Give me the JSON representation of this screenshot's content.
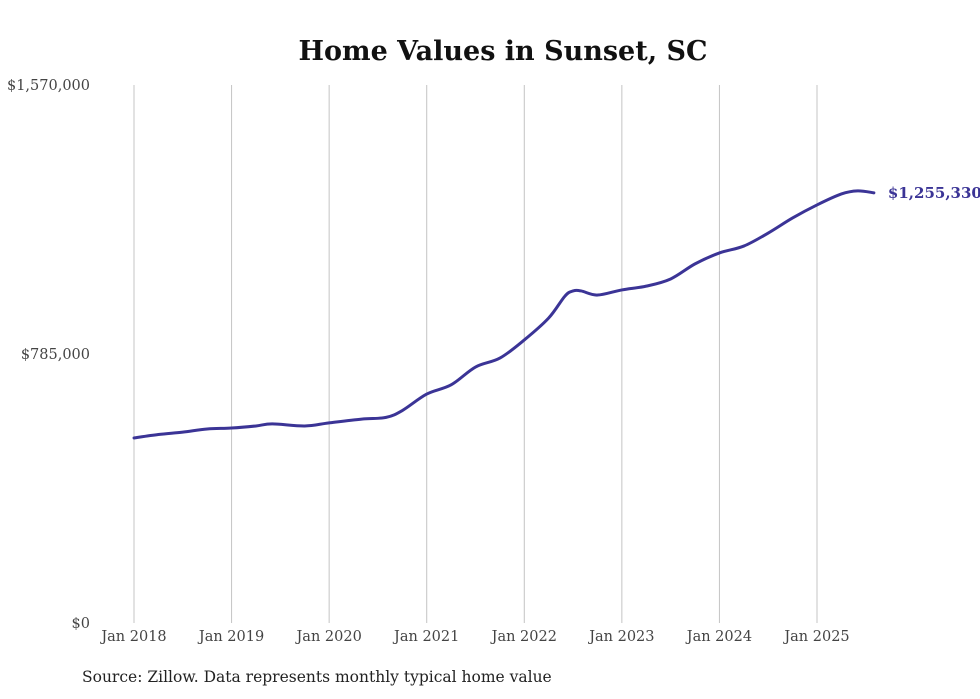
{
  "chart_data": {
    "type": "line",
    "title": "Home Values in Sunset, SC",
    "xlabel": "",
    "ylabel": "",
    "ylim": [
      0,
      1570000
    ],
    "y_ticks": [
      "$0",
      "$785,000",
      "$1,570,000"
    ],
    "y_tick_values": [
      0,
      785000,
      1570000
    ],
    "x_ticks": [
      "Jan 2018",
      "Jan 2019",
      "Jan 2020",
      "Jan 2021",
      "Jan 2022",
      "Jan 2023",
      "Jan 2024",
      "Jan 2025"
    ],
    "x_tick_values": [
      2018,
      2019,
      2020,
      2021,
      2022,
      2023,
      2024,
      2025
    ],
    "grid": "vertical",
    "line_color": "#3b3496",
    "series": [
      {
        "name": "Typical home value",
        "x": [
          "2018-01",
          "2018-04",
          "2018-07",
          "2018-10",
          "2019-01",
          "2019-04",
          "2019-06",
          "2019-10",
          "2020-01",
          "2020-05",
          "2020-08",
          "2020-10",
          "2021-01",
          "2021-04",
          "2021-07",
          "2021-10",
          "2022-01",
          "2022-04",
          "2022-06",
          "2022-07",
          "2022-08",
          "2022-10",
          "2023-01",
          "2023-04",
          "2023-07",
          "2023-10",
          "2024-01",
          "2024-04",
          "2024-07",
          "2024-10",
          "2025-01",
          "2025-04",
          "2025-06",
          "2025-08"
        ],
        "values": [
          540000,
          550000,
          557000,
          566000,
          569000,
          575000,
          581000,
          575000,
          584000,
          595000,
          600000,
          620000,
          668000,
          695000,
          747000,
          773000,
          826000,
          890000,
          954000,
          969000,
          969000,
          957000,
          972000,
          983000,
          1004000,
          1048000,
          1080000,
          1100000,
          1138000,
          1182000,
          1220000,
          1252000,
          1261000,
          1255330
        ]
      }
    ],
    "end_label": "$1,255,330"
  },
  "source": "Source: Zillow. Data represents monthly typical home value"
}
